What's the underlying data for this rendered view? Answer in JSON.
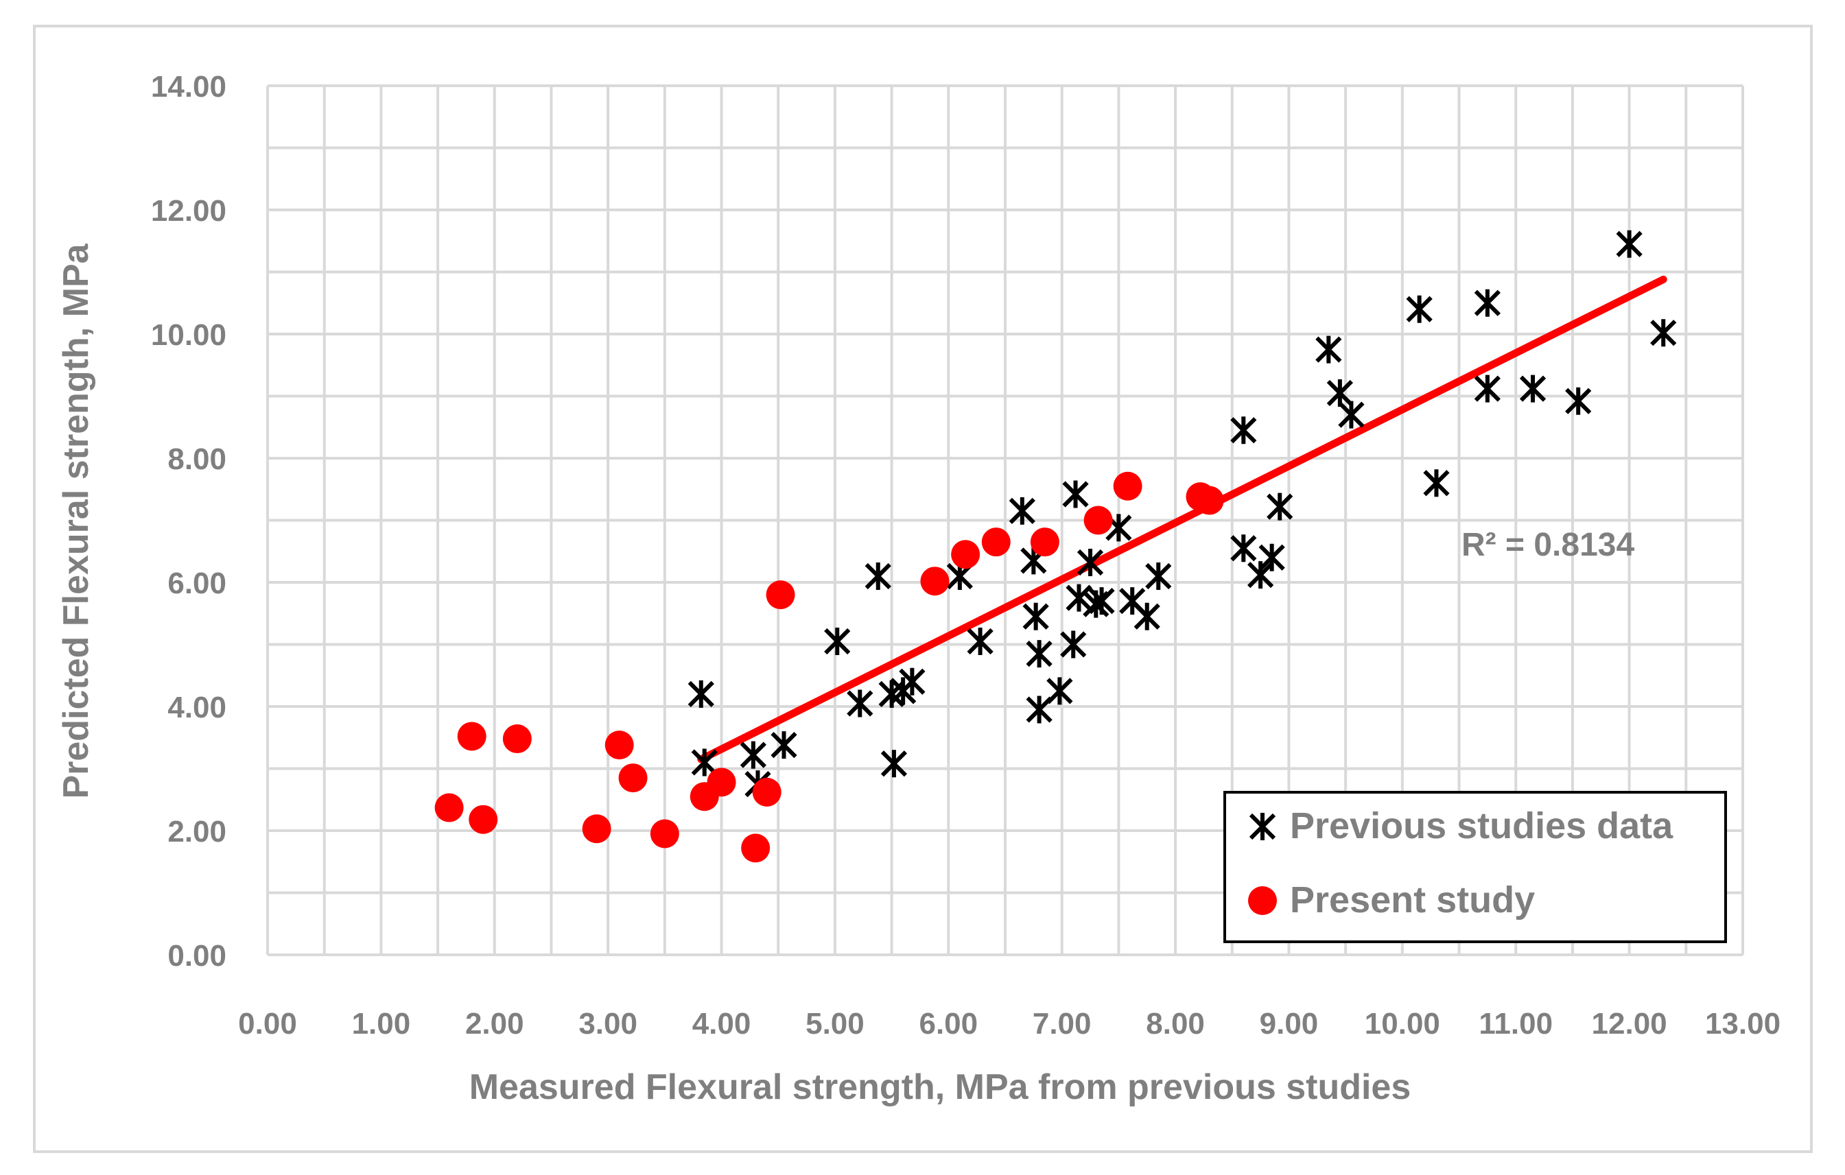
{
  "colors": {
    "previous": "#000000",
    "present": "#ff0000",
    "trendline": "#ff0000",
    "grid": "#d9d9d9",
    "axis_text": "#7f7f7f",
    "frame": "#d9d9d9",
    "legend_border": "#000000"
  },
  "chart_data": {
    "type": "scatter",
    "title": "",
    "xlabel": "Measured Flexural strength, MPa from previous studies",
    "ylabel": "Predicted Flexural strength, MPa",
    "xlim": [
      0,
      13
    ],
    "ylim": [
      0,
      14
    ],
    "x_ticks": [
      "0.00",
      "1.00",
      "2.00",
      "3.00",
      "4.00",
      "5.00",
      "6.00",
      "7.00",
      "8.00",
      "9.00",
      "10.00",
      "11.00",
      "12.00",
      "13.00"
    ],
    "y_ticks": [
      "0.00",
      "2.00",
      "4.00",
      "6.00",
      "8.00",
      "10.00",
      "12.00",
      "14.00"
    ],
    "grid": true,
    "legend_position": "bottom-right",
    "series": [
      {
        "name": "Previous studies data",
        "marker": "star-x",
        "points": [
          [
            3.82,
            4.2
          ],
          [
            3.85,
            3.1
          ],
          [
            4.28,
            3.22
          ],
          [
            4.32,
            2.75
          ],
          [
            4.55,
            3.38
          ],
          [
            5.02,
            5.05
          ],
          [
            5.22,
            4.05
          ],
          [
            5.38,
            6.1
          ],
          [
            5.5,
            4.2
          ],
          [
            5.52,
            3.08
          ],
          [
            5.6,
            4.25
          ],
          [
            5.68,
            4.4
          ],
          [
            6.1,
            6.1
          ],
          [
            6.28,
            5.05
          ],
          [
            6.65,
            7.15
          ],
          [
            6.75,
            6.35
          ],
          [
            6.77,
            5.45
          ],
          [
            6.8,
            4.85
          ],
          [
            6.8,
            3.95
          ],
          [
            6.98,
            4.25
          ],
          [
            7.1,
            5.0
          ],
          [
            7.12,
            7.42
          ],
          [
            7.15,
            5.75
          ],
          [
            7.25,
            6.32
          ],
          [
            7.3,
            5.65
          ],
          [
            7.35,
            5.7
          ],
          [
            7.5,
            6.88
          ],
          [
            7.62,
            5.7
          ],
          [
            7.75,
            5.45
          ],
          [
            7.85,
            6.1
          ],
          [
            8.6,
            8.45
          ],
          [
            8.6,
            6.55
          ],
          [
            8.75,
            6.12
          ],
          [
            8.85,
            6.4
          ],
          [
            8.92,
            7.22
          ],
          [
            9.35,
            9.75
          ],
          [
            9.45,
            9.05
          ],
          [
            9.55,
            8.7
          ],
          [
            10.15,
            10.4
          ],
          [
            10.3,
            7.6
          ],
          [
            10.75,
            10.5
          ],
          [
            10.75,
            9.12
          ],
          [
            11.15,
            9.12
          ],
          [
            11.55,
            8.92
          ],
          [
            12.0,
            11.45
          ],
          [
            12.3,
            10.02
          ]
        ]
      },
      {
        "name": "Present study",
        "marker": "circle",
        "points": [
          [
            1.6,
            2.37
          ],
          [
            1.8,
            3.52
          ],
          [
            1.9,
            2.18
          ],
          [
            2.2,
            3.48
          ],
          [
            2.9,
            2.03
          ],
          [
            3.1,
            3.38
          ],
          [
            3.22,
            2.85
          ],
          [
            3.5,
            1.95
          ],
          [
            3.85,
            2.55
          ],
          [
            4.0,
            2.78
          ],
          [
            4.3,
            1.72
          ],
          [
            4.4,
            2.62
          ],
          [
            4.52,
            5.8
          ],
          [
            5.88,
            6.02
          ],
          [
            6.15,
            6.45
          ],
          [
            6.42,
            6.65
          ],
          [
            6.85,
            6.65
          ],
          [
            7.32,
            7.0
          ],
          [
            7.58,
            7.55
          ],
          [
            8.22,
            7.38
          ],
          [
            8.3,
            7.32
          ]
        ]
      }
    ],
    "trendline": {
      "series": "Previous studies data",
      "x": [
        3.82,
        12.3
      ],
      "y": [
        3.15,
        10.88
      ],
      "r2_label": "R² = 0.8134"
    }
  },
  "legend": {
    "items": [
      {
        "label": "Previous studies data"
      },
      {
        "label": "Present study"
      }
    ]
  }
}
